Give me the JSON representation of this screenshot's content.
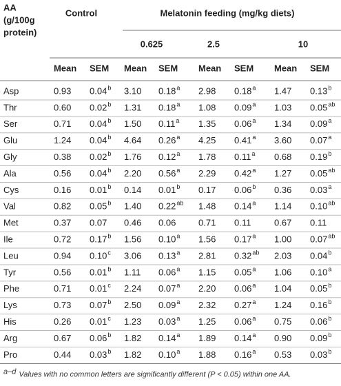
{
  "header": {
    "aa": [
      "AA",
      "(g/100g",
      "protein)"
    ],
    "control": "Control",
    "melatonin": "Melatonin feeding (mg/kg diets)",
    "doses": [
      "0.625",
      "2.5",
      "10"
    ]
  },
  "table": {
    "subheaders": [
      "Mean",
      "SEM",
      "Mean",
      "SEM",
      "Mean",
      "SEM",
      "Mean",
      "SEM"
    ],
    "rows": [
      {
        "aa": "Asp",
        "cells": [
          [
            "0.93"
          ],
          [
            "0.04",
            "b"
          ],
          [
            "3.10"
          ],
          [
            "0.18",
            "a"
          ],
          [
            "2.98"
          ],
          [
            "0.18",
            "a"
          ],
          [
            "1.47"
          ],
          [
            "0.13",
            "b"
          ]
        ]
      },
      {
        "aa": "Thr",
        "cells": [
          [
            "0.60"
          ],
          [
            "0.02",
            "b"
          ],
          [
            "1.31"
          ],
          [
            "0.18",
            "a"
          ],
          [
            "1.08"
          ],
          [
            "0.09",
            "a"
          ],
          [
            "1.03"
          ],
          [
            "0.05",
            "ab"
          ]
        ]
      },
      {
        "aa": "Ser",
        "cells": [
          [
            "0.71"
          ],
          [
            "0.04",
            "b"
          ],
          [
            "1.50"
          ],
          [
            "0.11",
            "a"
          ],
          [
            "1.35"
          ],
          [
            "0.06",
            "a"
          ],
          [
            "1.34"
          ],
          [
            "0.09",
            "a"
          ]
        ]
      },
      {
        "aa": "Glu",
        "cells": [
          [
            "1.24"
          ],
          [
            "0.04",
            "b"
          ],
          [
            "4.64"
          ],
          [
            "0.26",
            "a"
          ],
          [
            "4.25"
          ],
          [
            "0.41",
            "a"
          ],
          [
            "3.60"
          ],
          [
            "0.07",
            "a"
          ]
        ]
      },
      {
        "aa": "Gly",
        "cells": [
          [
            "0.38"
          ],
          [
            "0.02",
            "b"
          ],
          [
            "1.76"
          ],
          [
            "0.12",
            "a"
          ],
          [
            "1.78"
          ],
          [
            "0.11",
            "a"
          ],
          [
            "0.68"
          ],
          [
            "0.19",
            "b"
          ]
        ]
      },
      {
        "aa": "Ala",
        "cells": [
          [
            "0.56"
          ],
          [
            "0.04",
            "b"
          ],
          [
            "2.20"
          ],
          [
            "0.56",
            "a"
          ],
          [
            "2.29"
          ],
          [
            "0.42",
            "a"
          ],
          [
            "1.27"
          ],
          [
            "0.05",
            "ab"
          ]
        ]
      },
      {
        "aa": "Cys",
        "cells": [
          [
            "0.16"
          ],
          [
            "0.01",
            "b"
          ],
          [
            "0.14"
          ],
          [
            "0.01",
            "b"
          ],
          [
            "0.17"
          ],
          [
            "0.06",
            "b"
          ],
          [
            "0.36"
          ],
          [
            "0.03",
            "a"
          ]
        ]
      },
      {
        "aa": "Val",
        "cells": [
          [
            "0.82"
          ],
          [
            "0.05",
            "b"
          ],
          [
            "1.40"
          ],
          [
            "0.22",
            "ab"
          ],
          [
            "1.48"
          ],
          [
            "0.14",
            "a"
          ],
          [
            "1.14"
          ],
          [
            "0.10",
            "ab"
          ]
        ]
      },
      {
        "aa": "Met",
        "cells": [
          [
            "0.37"
          ],
          [
            "0.07"
          ],
          [
            "0.46"
          ],
          [
            "0.06"
          ],
          [
            "0.71"
          ],
          [
            "0.11"
          ],
          [
            "0.67"
          ],
          [
            "0.11"
          ]
        ]
      },
      {
        "aa": "Ile",
        "cells": [
          [
            "0.72"
          ],
          [
            "0.17",
            "b"
          ],
          [
            "1.56"
          ],
          [
            "0.10",
            "a"
          ],
          [
            "1.56"
          ],
          [
            "0.17",
            "a"
          ],
          [
            "1.00"
          ],
          [
            "0.07",
            "ab"
          ]
        ]
      },
      {
        "aa": "Leu",
        "cells": [
          [
            "0.94"
          ],
          [
            "0.10",
            "c"
          ],
          [
            "3.06"
          ],
          [
            "0.13",
            "a"
          ],
          [
            "2.81"
          ],
          [
            "0.32",
            "ab"
          ],
          [
            "2.03"
          ],
          [
            "0.04",
            "b"
          ]
        ]
      },
      {
        "aa": "Tyr",
        "cells": [
          [
            "0.56"
          ],
          [
            "0.01",
            "b"
          ],
          [
            "1.11"
          ],
          [
            "0.06",
            "a"
          ],
          [
            "1.15"
          ],
          [
            "0.05",
            "a"
          ],
          [
            "1.06"
          ],
          [
            "0.10",
            "a"
          ]
        ]
      },
      {
        "aa": "Phe",
        "cells": [
          [
            "0.71"
          ],
          [
            "0.01",
            "c"
          ],
          [
            "2.24"
          ],
          [
            "0.07",
            "a"
          ],
          [
            "2.20"
          ],
          [
            "0.06",
            "a"
          ],
          [
            "1.04"
          ],
          [
            "0.05",
            "b"
          ]
        ]
      },
      {
        "aa": "Lys",
        "cells": [
          [
            "0.73"
          ],
          [
            "0.07",
            "b"
          ],
          [
            "2.50"
          ],
          [
            "0.09",
            "a"
          ],
          [
            "2.32"
          ],
          [
            "0.27",
            "a"
          ],
          [
            "1.24"
          ],
          [
            "0.16",
            "b"
          ]
        ]
      },
      {
        "aa": "His",
        "cells": [
          [
            "0.26"
          ],
          [
            "0.01",
            "c"
          ],
          [
            "1.23"
          ],
          [
            "0.03",
            "a"
          ],
          [
            "1.25"
          ],
          [
            "0.06",
            "a"
          ],
          [
            "0.75"
          ],
          [
            "0.06",
            "b"
          ]
        ]
      },
      {
        "aa": "Arg",
        "cells": [
          [
            "0.67"
          ],
          [
            "0.06",
            "b"
          ],
          [
            "1.82"
          ],
          [
            "0.14",
            "a"
          ],
          [
            "1.89"
          ],
          [
            "0.14",
            "a"
          ],
          [
            "0.90"
          ],
          [
            "0.09",
            "b"
          ]
        ]
      },
      {
        "aa": "Pro",
        "cells": [
          [
            "0.44"
          ],
          [
            "0.03",
            "b"
          ],
          [
            "1.82"
          ],
          [
            "0.10",
            "a"
          ],
          [
            "1.88"
          ],
          [
            "0.16",
            "a"
          ],
          [
            "0.53"
          ],
          [
            "0.03",
            "b"
          ]
        ]
      }
    ]
  },
  "footnote": {
    "marker": "a–d",
    "text": "Values with no common letters are significantly different (P < 0.05) within one AA."
  }
}
